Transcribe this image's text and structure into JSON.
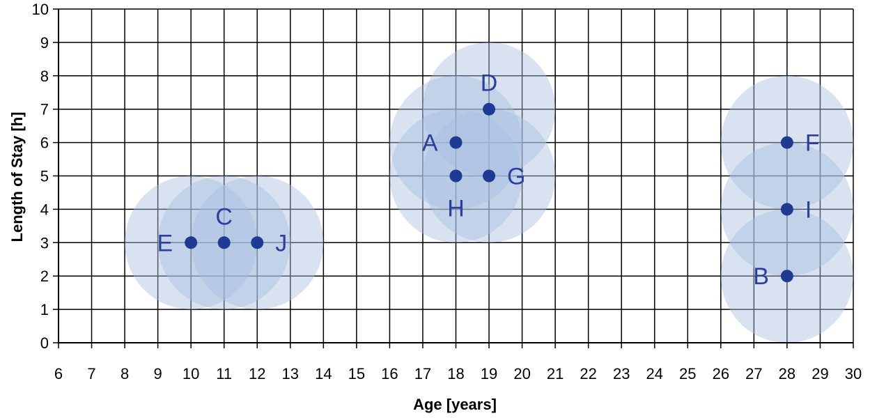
{
  "chart_data": {
    "type": "scatter",
    "title": "",
    "xlabel": "Age [years]",
    "ylabel": "Length of Stay [h]",
    "xlim": [
      6,
      30
    ],
    "ylim": [
      0,
      10
    ],
    "xticks": [
      "6",
      "7",
      "8",
      "9",
      "10",
      "11",
      "12",
      "13",
      "14",
      "15",
      "16",
      "17",
      "18",
      "19",
      "20",
      "21",
      "22",
      "23",
      "24",
      "25",
      "26",
      "27",
      "28",
      "29",
      "30"
    ],
    "yticks": [
      "0",
      "1",
      "2",
      "3",
      "4",
      "5",
      "6",
      "7",
      "8",
      "9",
      "10"
    ],
    "grid": true,
    "points": [
      {
        "label": "A",
        "x": 18,
        "y": 6,
        "label_side": "left"
      },
      {
        "label": "B",
        "x": 28,
        "y": 2,
        "label_side": "left"
      },
      {
        "label": "C",
        "x": 11,
        "y": 3,
        "label_side": "above"
      },
      {
        "label": "D",
        "x": 19,
        "y": 7,
        "label_side": "above"
      },
      {
        "label": "E",
        "x": 10,
        "y": 3,
        "label_side": "left"
      },
      {
        "label": "F",
        "x": 28,
        "y": 6,
        "label_side": "right"
      },
      {
        "label": "G",
        "x": 19,
        "y": 5,
        "label_side": "right"
      },
      {
        "label": "H",
        "x": 18,
        "y": 5,
        "label_side": "below"
      },
      {
        "label": "I",
        "x": 28,
        "y": 4,
        "label_side": "right"
      },
      {
        "label": "J",
        "x": 12,
        "y": 3,
        "label_side": "right"
      }
    ],
    "neighborhood_radius": 2,
    "colors": {
      "point": "#1f3a93",
      "circle": "#a9bfe0",
      "label": "#2b3fa0",
      "grid": "#000000"
    }
  }
}
